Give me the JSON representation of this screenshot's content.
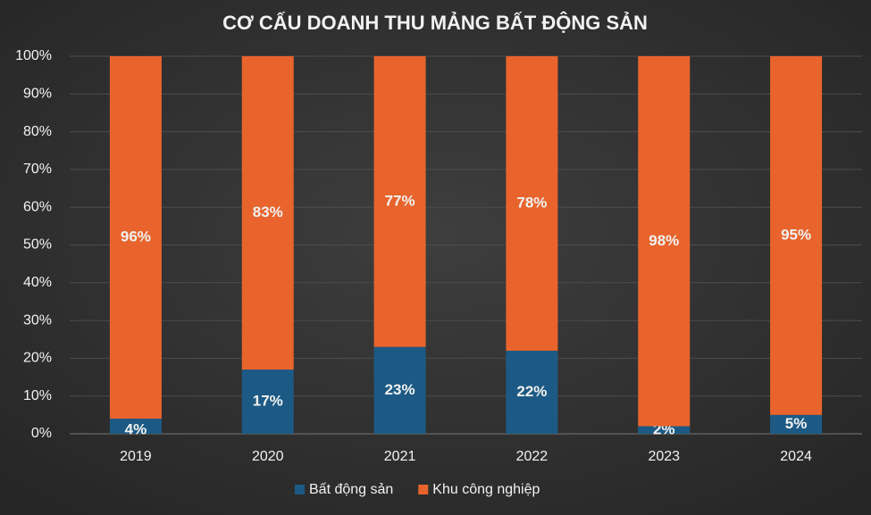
{
  "chart_data": {
    "type": "stacked-bar",
    "title": "CƠ CẤU DOANH THU MẢNG BẤT ĐỘNG SẢN",
    "categories": [
      "2019",
      "2020",
      "2021",
      "2022",
      "2023",
      "2024"
    ],
    "series": [
      {
        "name": "Bất động sản",
        "color": "#1c5a85",
        "values": [
          4,
          17,
          23,
          22,
          2,
          5
        ],
        "value_labels": [
          "4%",
          "17%",
          "23%",
          "22%",
          "2%",
          "5%"
        ]
      },
      {
        "name": "Khu công nghiệp",
        "color": "#e8642c",
        "values": [
          96,
          83,
          77,
          78,
          98,
          95
        ],
        "value_labels": [
          "96%",
          "83%",
          "77%",
          "78%",
          "98%",
          "95%"
        ]
      }
    ],
    "ylim": [
      0,
      100
    ],
    "yticks": [
      {
        "value": 0,
        "label": "0%"
      },
      {
        "value": 10,
        "label": "10%"
      },
      {
        "value": 20,
        "label": "20%"
      },
      {
        "value": 30,
        "label": "30%"
      },
      {
        "value": 40,
        "label": "40%"
      },
      {
        "value": 50,
        "label": "50%"
      },
      {
        "value": 60,
        "label": "60%"
      },
      {
        "value": 70,
        "label": "70%"
      },
      {
        "value": 80,
        "label": "80%"
      },
      {
        "value": 90,
        "label": "90%"
      },
      {
        "value": 100,
        "label": "100%"
      }
    ],
    "grid": true,
    "legend": "bottom"
  }
}
